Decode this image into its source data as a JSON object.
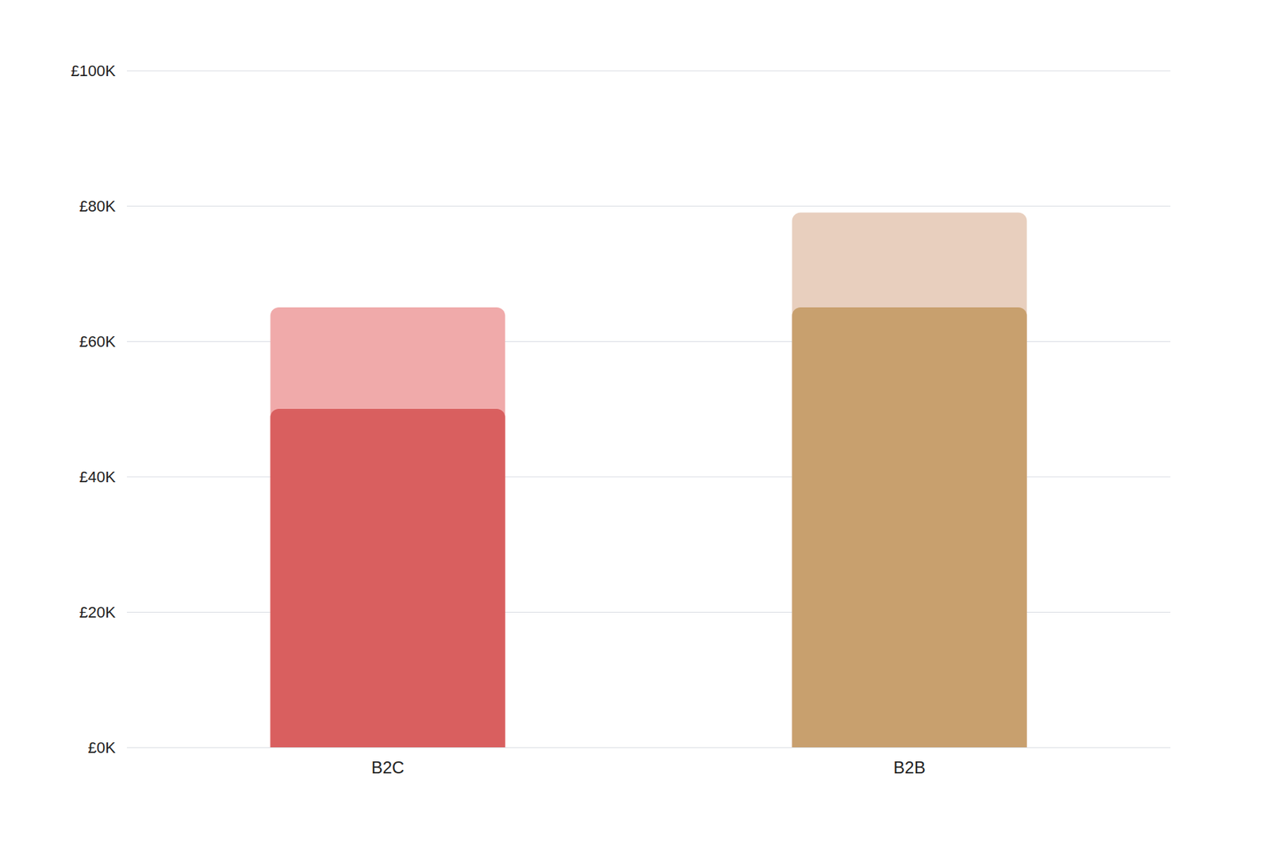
{
  "chart_data": {
    "type": "bar",
    "categories": [
      "B2C",
      "B2B"
    ],
    "series": [
      {
        "values": [
          65000,
          79000
        ],
        "colors": [
          "#F0AAAA",
          "#E8CFBE"
        ]
      },
      {
        "values": [
          50000,
          65000
        ],
        "colors": [
          "#D95F5F",
          "#C8A06E"
        ]
      }
    ],
    "ylim": [
      0,
      100000
    ],
    "yticks": [
      {
        "value": 0,
        "label": "£0K"
      },
      {
        "value": 20000,
        "label": "£20K"
      },
      {
        "value": 40000,
        "label": "£40K"
      },
      {
        "value": 60000,
        "label": "£60K"
      },
      {
        "value": 80000,
        "label": "£80K"
      },
      {
        "value": 100000,
        "label": "£100K"
      }
    ],
    "grid": true
  }
}
